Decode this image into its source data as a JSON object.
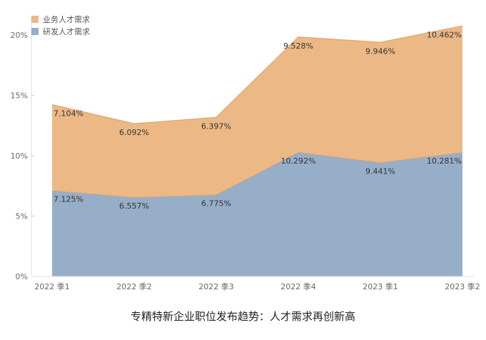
{
  "caption": "专精特新企业职位发布趋势：人才需求再创新高",
  "chart_data": {
    "type": "area",
    "stacked": true,
    "categories": [
      "2022 季1",
      "2022 季2",
      "2022 季3",
      "2022 季4",
      "2023 季1",
      "2023 季2"
    ],
    "series": [
      {
        "name": "研发人才需求",
        "values": [
          7.125,
          6.557,
          6.775,
          10.292,
          9.441,
          10.281
        ],
        "labels": [
          "7.125%",
          "6.557%",
          "6.775%",
          "10.292%",
          "9.441%",
          "10.281%"
        ],
        "color": "#97aec8"
      },
      {
        "name": "业务人才需求",
        "values": [
          7.104,
          6.092,
          6.397,
          9.528,
          9.946,
          10.462
        ],
        "labels": [
          "7.104%",
          "6.092%",
          "6.397%",
          "9.528%",
          "9.946%",
          "10.462%"
        ],
        "color": "#ecb986"
      }
    ],
    "y_ticks": [
      "0%",
      "5%",
      "10%",
      "15%",
      "20%"
    ],
    "ylim": [
      0,
      21
    ],
    "grid": false,
    "legend_position": "top-left"
  }
}
